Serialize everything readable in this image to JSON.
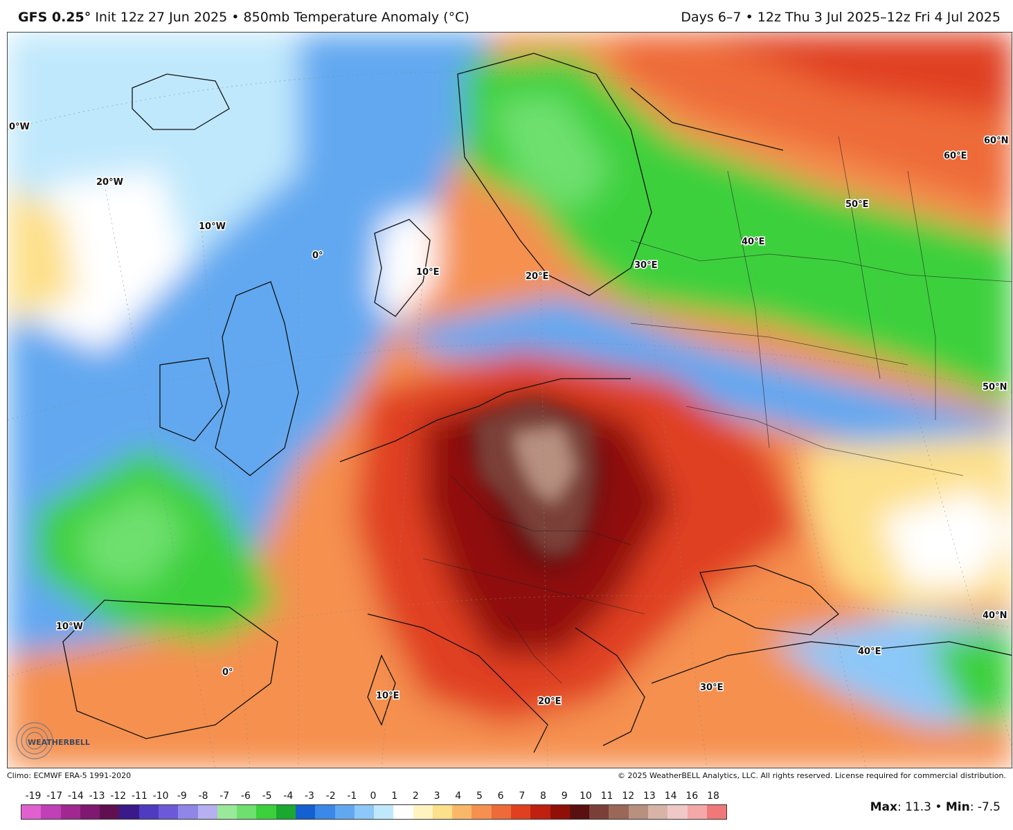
{
  "header": {
    "model": "GFS 0.25°",
    "init": "Init 12z 27 Jun 2025",
    "sep": "•",
    "product": "850mb Temperature Anomaly (°C)",
    "valid": "Days 6–7 • 12z Thu 3 Jul 2025–12z Fri 4 Jul 2025"
  },
  "map": {
    "grid_labels": [
      "0°W",
      "20°W",
      "10°W",
      "0°",
      "10°E",
      "20°E",
      "30°E",
      "40°E",
      "50°E",
      "60°E",
      "60°N",
      "50°N",
      "40°N",
      "10°W",
      "0°",
      "10°E",
      "20°E",
      "30°E",
      "40°E"
    ]
  },
  "logo_text": "WEATHERBELL",
  "credits": {
    "climo": "Climo: ECMWF ERA-5 1991-2020",
    "copyright": "© 2025 WeatherBELL Analytics, LLC. All rights reserved. License required for commercial distribution."
  },
  "scale": {
    "ticks": [
      "-19",
      "-17",
      "-14",
      "-13",
      "-12",
      "-11",
      "-10",
      "-9",
      "-8",
      "-7",
      "-6",
      "-5",
      "-4",
      "-3",
      "-2",
      "-1",
      "0",
      "1",
      "2",
      "3",
      "4",
      "5",
      "6",
      "7",
      "8",
      "9",
      "10",
      "11",
      "12",
      "13",
      "14",
      "16",
      "18"
    ],
    "colors": [
      "#e060d0",
      "#c040b8",
      "#a02890",
      "#801870",
      "#601050",
      "#3a1a8a",
      "#4e3cc0",
      "#6a5ad8",
      "#8f86e8",
      "#b6b0f0",
      "#9ae89a",
      "#6ee06e",
      "#3cd03c",
      "#1aa830",
      "#1560d0",
      "#3a88e8",
      "#62a8f0",
      "#8cc8f8",
      "#c0e8fc",
      "#ffffff",
      "#fff4c0",
      "#fde08a",
      "#f9b868",
      "#f59050",
      "#ee6a38",
      "#e04020",
      "#c02010",
      "#901008",
      "#5a1010",
      "#7a4038",
      "#9a6858",
      "#b89080",
      "#d8b4a8",
      "#f0c8c8",
      "#f4a8a8",
      "#f07878"
    ]
  },
  "stats": {
    "max_label": "Max",
    "max": "11.3",
    "min_label": "Min",
    "min": "-7.5",
    "sep": "•"
  }
}
